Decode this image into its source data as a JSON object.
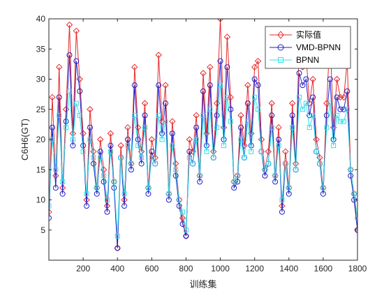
{
  "chart_data": {
    "type": "line",
    "xlabel": "训练集",
    "ylabel": "C6H6(GT)",
    "xlim": [
      0,
      1800
    ],
    "ylim": [
      0,
      40
    ],
    "xticks": [
      200,
      400,
      600,
      800,
      1000,
      1200,
      1400,
      1600,
      1800
    ],
    "yticks": [
      5,
      10,
      15,
      20,
      25,
      30,
      35,
      40
    ],
    "grid": false,
    "legend_position": "top-right",
    "x": [
      0,
      20,
      40,
      60,
      80,
      100,
      120,
      140,
      160,
      180,
      200,
      220,
      240,
      260,
      280,
      300,
      320,
      340,
      360,
      380,
      400,
      420,
      440,
      460,
      480,
      500,
      520,
      540,
      560,
      580,
      600,
      620,
      640,
      660,
      680,
      700,
      720,
      740,
      760,
      780,
      800,
      820,
      840,
      860,
      880,
      900,
      920,
      940,
      960,
      980,
      1000,
      1020,
      1040,
      1060,
      1080,
      1100,
      1120,
      1140,
      1160,
      1180,
      1200,
      1220,
      1240,
      1260,
      1280,
      1300,
      1320,
      1340,
      1360,
      1380,
      1400,
      1420,
      1440,
      1460,
      1480,
      1500,
      1520,
      1540,
      1560,
      1580,
      1600,
      1620,
      1640,
      1660,
      1680,
      1700,
      1720,
      1740,
      1760,
      1780,
      1800
    ],
    "series": [
      {
        "name": "实际值",
        "color": "#e8282b",
        "marker": "diamond",
        "values": [
          8,
          27,
          14,
          32,
          12,
          25,
          39,
          21,
          38,
          30,
          21,
          10,
          25,
          18,
          12,
          20,
          15,
          9,
          21,
          13,
          2,
          19,
          10,
          22,
          16,
          32,
          22,
          18,
          26,
          12,
          20,
          17,
          34,
          23,
          29,
          11,
          23,
          16,
          10,
          7,
          4,
          20,
          18,
          24,
          14,
          31,
          21,
          32,
          18,
          26,
          40,
          22,
          37,
          27,
          13,
          14,
          24,
          19,
          29,
          21,
          32,
          33,
          20,
          15,
          18,
          26,
          14,
          22,
          9,
          18,
          12,
          26,
          16,
          36,
          32,
          34,
          26,
          30,
          20,
          17,
          12,
          26,
          37,
          22,
          30,
          27,
          27,
          33,
          15,
          11,
          5
        ]
      },
      {
        "name": "VMD-BPNN",
        "color": "#1f1fc8",
        "marker": "circle",
        "values": [
          7,
          22,
          12,
          27,
          11,
          23,
          34,
          19,
          33,
          28,
          19,
          9,
          22,
          16,
          11,
          18,
          13,
          8,
          19,
          12,
          2,
          17,
          9,
          20,
          15,
          29,
          20,
          16,
          24,
          11,
          18,
          16,
          29,
          21,
          26,
          10,
          21,
          14,
          9,
          6,
          4,
          18,
          16,
          22,
          13,
          28,
          19,
          29,
          17,
          24,
          33,
          20,
          32,
          25,
          12,
          13,
          22,
          17,
          26,
          19,
          30,
          29,
          18,
          14,
          16,
          24,
          13,
          20,
          8,
          16,
          11,
          24,
          15,
          31,
          29,
          30,
          24,
          27,
          18,
          16,
          11,
          24,
          30,
          20,
          27,
          25,
          25,
          28,
          14,
          10,
          5
        ]
      },
      {
        "name": "BPNN",
        "color": "#2fe0e8",
        "marker": "square",
        "values": [
          9,
          20,
          15,
          24,
          13,
          22,
          28,
          20,
          26,
          24,
          18,
          11,
          20,
          17,
          12,
          17,
          14,
          10,
          18,
          13,
          4,
          17,
          11,
          19,
          16,
          24,
          19,
          17,
          22,
          12,
          17,
          16,
          24,
          20,
          23,
          11,
          19,
          15,
          10,
          8,
          5,
          17,
          16,
          20,
          14,
          24,
          18,
          25,
          17,
          22,
          29,
          19,
          27,
          23,
          13,
          14,
          20,
          17,
          23,
          18,
          27,
          25,
          18,
          15,
          16,
          22,
          14,
          19,
          10,
          16,
          12,
          22,
          15,
          27,
          25,
          26,
          22,
          24,
          18,
          16,
          12,
          22,
          26,
          19,
          24,
          23,
          23,
          25,
          15,
          11,
          7
        ]
      }
    ]
  }
}
